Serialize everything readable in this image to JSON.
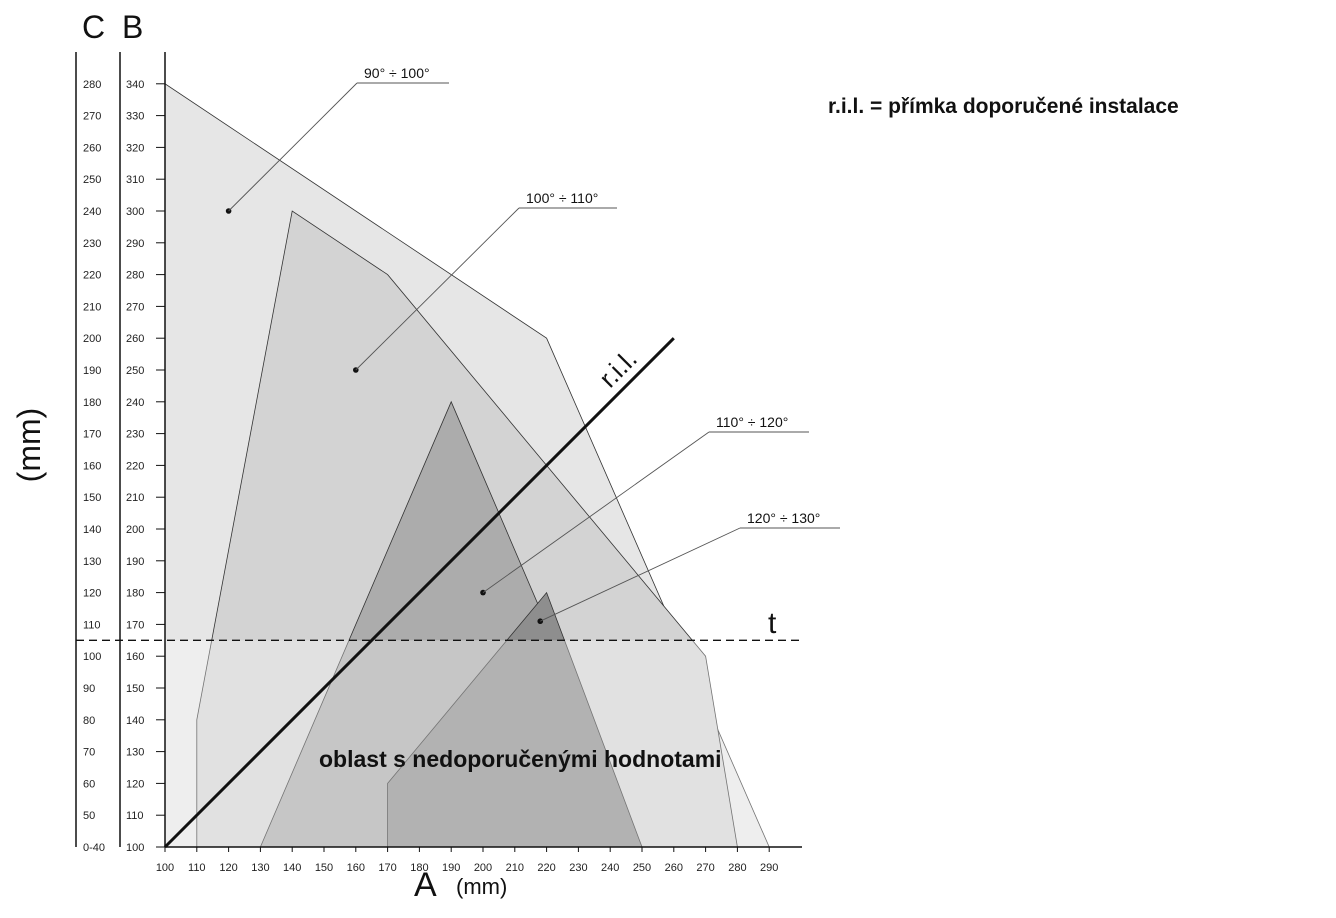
{
  "legend_note": "r.i.l. = přímka doporučené instalace",
  "chart_data": {
    "type": "area",
    "x_axis": {
      "label": "A",
      "unit": "(mm)",
      "ticks": [
        100,
        110,
        120,
        130,
        140,
        150,
        160,
        170,
        180,
        190,
        200,
        210,
        220,
        230,
        240,
        250,
        260,
        270,
        280,
        290
      ]
    },
    "y_axis_B": {
      "label": "B",
      "ticks": [
        100,
        110,
        120,
        130,
        140,
        150,
        160,
        170,
        180,
        190,
        200,
        210,
        220,
        230,
        240,
        250,
        260,
        270,
        280,
        290,
        300,
        310,
        320,
        330,
        340
      ]
    },
    "y_axis_C": {
      "label": "C",
      "tick_labels": [
        "0-40",
        "50",
        "60",
        "70",
        "80",
        "90",
        "100",
        "110",
        "120",
        "130",
        "140",
        "150",
        "160",
        "170",
        "180",
        "190",
        "200",
        "210",
        "220",
        "230",
        "240",
        "250",
        "260",
        "270",
        "280"
      ]
    },
    "y_unit": "(mm)",
    "regions": [
      {
        "name": "90° ÷ 100°",
        "color": "#e6e6e6",
        "points": [
          [
            100,
            100
          ],
          [
            100,
            340
          ],
          [
            220,
            260
          ],
          [
            290,
            100
          ]
        ],
        "marker": [
          120,
          300
        ]
      },
      {
        "name": "100° ÷ 110°",
        "color": "#d3d3d3",
        "points": [
          [
            110,
            100
          ],
          [
            110,
            140
          ],
          [
            140,
            300
          ],
          [
            170,
            280
          ],
          [
            270,
            160
          ],
          [
            280,
            100
          ]
        ],
        "marker": [
          160,
          250
        ]
      },
      {
        "name": "110° ÷ 120°",
        "color": "#acacac",
        "points": [
          [
            130,
            100
          ],
          [
            190,
            240
          ],
          [
            250,
            100
          ]
        ],
        "marker": [
          200,
          180
        ]
      },
      {
        "name": "120° ÷ 130°",
        "color": "#8e8e8e",
        "points": [
          [
            170,
            100
          ],
          [
            170,
            120
          ],
          [
            220,
            180
          ],
          [
            250,
            100
          ]
        ],
        "marker": [
          218,
          171
        ]
      }
    ],
    "ril_line": {
      "label": "r.i.l.",
      "from": [
        100,
        100
      ],
      "to": [
        260,
        260
      ]
    },
    "threshold": {
      "label": "t",
      "b_value": 165
    },
    "not_recommended_label": "oblast s nedoporučenými hodnotami"
  }
}
